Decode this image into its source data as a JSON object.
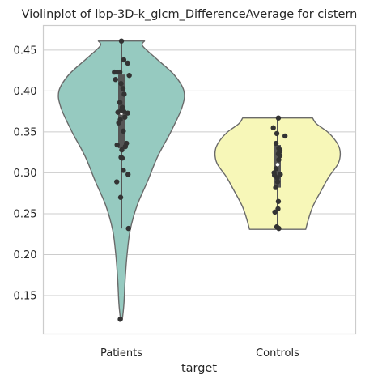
{
  "chart_data": {
    "type": "violin",
    "title": "Violinplot of lbp-3D-k_glcm_DifferenceAverage for cistern",
    "xlabel": "target",
    "ylabel": "",
    "categories": [
      "Patients",
      "Controls"
    ],
    "yticks": [
      0.15,
      0.2,
      0.25,
      0.3,
      0.35,
      0.4,
      0.45
    ],
    "ytick_labels": [
      "0.15",
      "0.20",
      "0.25",
      "0.30",
      "0.35",
      "0.40",
      "0.45"
    ],
    "ylim": [
      0.103,
      0.48
    ],
    "grid": true,
    "colors": {
      "Patients": "#96cac0",
      "Controls": "#f7f7b8",
      "outline": "#6a6a6a",
      "points": "#333333",
      "box": "#555555",
      "median": "#ffffff"
    },
    "series": [
      {
        "name": "Patients",
        "values": [
          0.461,
          0.438,
          0.434,
          0.423,
          0.423,
          0.423,
          0.419,
          0.414,
          0.409,
          0.403,
          0.396,
          0.386,
          0.38,
          0.377,
          0.375,
          0.374,
          0.373,
          0.368,
          0.365,
          0.361,
          0.351,
          0.336,
          0.334,
          0.332,
          0.328,
          0.319,
          0.318,
          0.303,
          0.298,
          0.289,
          0.27,
          0.232,
          0.121
        ],
        "jitter": [
          0.0,
          0.3,
          0.8,
          -0.9,
          -0.55,
          -0.2,
          1.0,
          -0.75,
          -0.05,
          0.2,
          0.35,
          -0.2,
          0.1,
          0.0,
          0.3,
          -0.45,
          0.8,
          0.45,
          -0.15,
          -0.35,
          0.25,
          0.65,
          -0.55,
          0.5,
          0.05,
          -0.05,
          0.1,
          0.25,
          0.85,
          -0.6,
          -0.1,
          0.9,
          -0.15
        ],
        "density": [
          [
            0.121,
            0.015
          ],
          [
            0.14,
            0.04
          ],
          [
            0.17,
            0.06
          ],
          [
            0.2,
            0.09
          ],
          [
            0.23,
            0.14
          ],
          [
            0.26,
            0.25
          ],
          [
            0.29,
            0.42
          ],
          [
            0.32,
            0.58
          ],
          [
            0.35,
            0.79
          ],
          [
            0.38,
            0.97
          ],
          [
            0.4,
            1.0
          ],
          [
            0.42,
            0.84
          ],
          [
            0.44,
            0.55
          ],
          [
            0.455,
            0.34
          ],
          [
            0.461,
            0.37
          ]
        ],
        "box": {
          "q1": 0.33,
          "median": 0.373,
          "q3": 0.42,
          "whisker_low": 0.232,
          "whisker_high": 0.461
        }
      },
      {
        "name": "Controls",
        "values": [
          0.367,
          0.355,
          0.348,
          0.345,
          0.336,
          0.33,
          0.328,
          0.326,
          0.323,
          0.321,
          0.316,
          0.305,
          0.3,
          0.298,
          0.297,
          0.294,
          0.289,
          0.282,
          0.265,
          0.256,
          0.252,
          0.234,
          0.232
        ],
        "jitter": [
          0.1,
          -0.55,
          -0.1,
          0.95,
          -0.2,
          0.15,
          0.3,
          0.25,
          0.1,
          0.3,
          0.15,
          -0.2,
          -0.45,
          0.35,
          -0.4,
          -0.05,
          0.0,
          -0.25,
          0.1,
          0.05,
          -0.35,
          -0.1,
          0.15
        ],
        "density": [
          [
            0.231,
            0.45
          ],
          [
            0.245,
            0.5
          ],
          [
            0.26,
            0.57
          ],
          [
            0.28,
            0.71
          ],
          [
            0.295,
            0.82
          ],
          [
            0.31,
            0.96
          ],
          [
            0.32,
            1.0
          ],
          [
            0.33,
            0.99
          ],
          [
            0.34,
            0.92
          ],
          [
            0.35,
            0.8
          ],
          [
            0.36,
            0.62
          ],
          [
            0.367,
            0.56
          ]
        ],
        "box": {
          "q1": 0.282,
          "median": 0.31,
          "q3": 0.334,
          "whisker_low": 0.232,
          "whisker_high": 0.367
        }
      }
    ]
  }
}
